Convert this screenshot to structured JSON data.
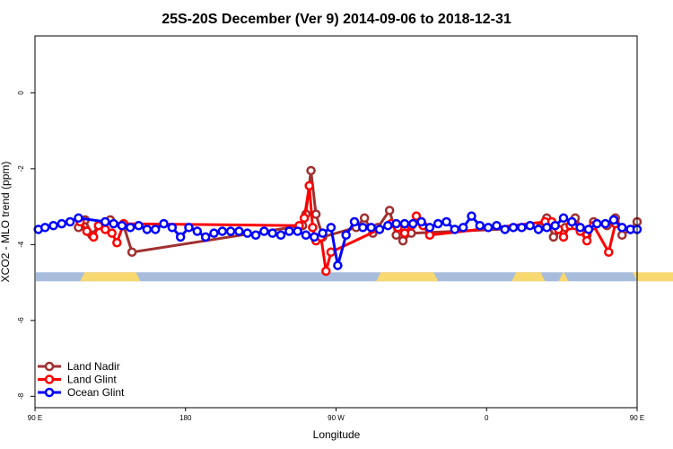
{
  "chart_data": {
    "type": "line",
    "title": "25S-20S December (Ver 9)   2014-09-06 to 2018-12-31",
    "xlabel": "Longitude",
    "ylabel": "XCO2 - MLO trend (ppm)",
    "x_range": [
      90,
      450
    ],
    "ylim": [
      -8.3,
      1.5
    ],
    "x_ticks": [
      {
        "value": 90,
        "label": "90 E"
      },
      {
        "value": 180,
        "label": "180"
      },
      {
        "value": 270,
        "label": "90 W"
      },
      {
        "value": 360,
        "label": "0"
      },
      {
        "value": 450,
        "label": "90 E"
      },
      {
        "value": 540,
        "label": "180"
      }
    ],
    "y_ticks": [
      {
        "value": 0,
        "label": "0"
      },
      {
        "value": -2,
        "label": "-2"
      },
      {
        "value": -4,
        "label": "-4"
      },
      {
        "value": -6,
        "label": "-6"
      },
      {
        "value": -8,
        "label": "-8"
      }
    ],
    "grid": false,
    "legend_position": "bottom-left",
    "land_strip": {
      "y_center": -4.85,
      "ocean_color": "#a8bcdc",
      "land_color": "#f8d870",
      "land_segments": [
        [
          117,
          153
        ],
        [
          294,
          331
        ],
        [
          375,
          395
        ],
        [
          403,
          409
        ],
        [
          474,
          529
        ]
      ]
    },
    "series": [
      {
        "name": "Land Nadir",
        "color": "#a03030",
        "x": [
          116,
          120,
          124,
          128,
          135,
          143,
          148,
          250,
          252,
          255,
          258,
          262,
          282,
          287,
          292,
          295,
          302,
          306,
          310,
          315,
          392,
          396,
          400,
          407,
          413,
          420,
          424,
          432,
          437,
          441,
          446,
          450
        ],
        "y": [
          -3.55,
          -3.35,
          -3.75,
          -3.5,
          -3.35,
          -3.5,
          -4.2,
          -3.5,
          -3.2,
          -2.05,
          -3.2,
          -3.8,
          -3.55,
          -3.3,
          -3.7,
          -3.55,
          -3.1,
          -3.75,
          -3.9,
          -3.7,
          -3.55,
          -3.3,
          -3.8,
          -3.55,
          -3.3,
          -3.75,
          -3.4,
          -3.5,
          -3.3,
          -3.75,
          -3.6,
          -3.4
        ]
      },
      {
        "name": "Land Glint",
        "color": "#ff0000",
        "x": [
          117,
          121,
          125,
          128,
          132,
          136,
          139,
          143,
          248,
          251,
          254,
          256,
          258,
          261,
          264,
          267,
          303,
          307,
          311,
          315,
          318,
          322,
          326,
          395,
          399,
          403,
          406,
          410,
          413,
          416,
          420,
          424,
          433,
          437
        ],
        "y": [
          -3.4,
          -3.65,
          -3.8,
          -3.5,
          -3.6,
          -3.7,
          -3.95,
          -3.45,
          -3.5,
          -3.3,
          -2.45,
          -3.55,
          -3.9,
          -3.8,
          -4.7,
          -4.2,
          -3.45,
          -3.55,
          -3.7,
          -3.5,
          -3.25,
          -3.5,
          -3.75,
          -3.4,
          -3.4,
          -3.6,
          -3.8,
          -3.5,
          -3.5,
          -3.65,
          -3.9,
          -3.5,
          -4.2,
          -3.45
        ]
      },
      {
        "name": "Ocean Glint",
        "color": "#0000ff",
        "x": [
          92,
          96,
          101,
          106,
          111,
          116,
          132,
          137,
          142,
          147,
          152,
          157,
          162,
          167,
          172,
          177,
          182,
          187,
          192,
          197,
          202,
          207,
          212,
          217,
          222,
          227,
          232,
          237,
          242,
          247,
          252,
          257,
          262,
          267,
          271,
          276,
          281,
          286,
          291,
          296,
          301,
          306,
          311,
          316,
          321,
          326,
          331,
          336,
          341,
          346,
          351,
          356,
          361,
          366,
          371,
          376,
          381,
          386,
          391,
          396,
          401,
          406,
          411,
          416,
          421,
          426,
          431,
          436,
          441,
          446,
          450
        ],
        "y": [
          -3.6,
          -3.55,
          -3.5,
          -3.45,
          -3.4,
          -3.3,
          -3.4,
          -3.45,
          -3.5,
          -3.55,
          -3.5,
          -3.6,
          -3.6,
          -3.45,
          -3.55,
          -3.8,
          -3.55,
          -3.65,
          -3.8,
          -3.7,
          -3.65,
          -3.65,
          -3.65,
          -3.7,
          -3.75,
          -3.65,
          -3.7,
          -3.75,
          -3.65,
          -3.65,
          -3.75,
          -3.8,
          -3.7,
          -3.55,
          -4.55,
          -3.75,
          -3.4,
          -3.55,
          -3.55,
          -3.6,
          -3.5,
          -3.45,
          -3.45,
          -3.45,
          -3.4,
          -3.55,
          -3.45,
          -3.4,
          -3.6,
          -3.55,
          -3.25,
          -3.5,
          -3.55,
          -3.5,
          -3.6,
          -3.55,
          -3.55,
          -3.5,
          -3.6,
          -3.55,
          -3.5,
          -3.3,
          -3.4,
          -3.55,
          -3.6,
          -3.45,
          -3.45,
          -3.35,
          -3.55,
          -3.6,
          -3.6
        ]
      }
    ]
  }
}
